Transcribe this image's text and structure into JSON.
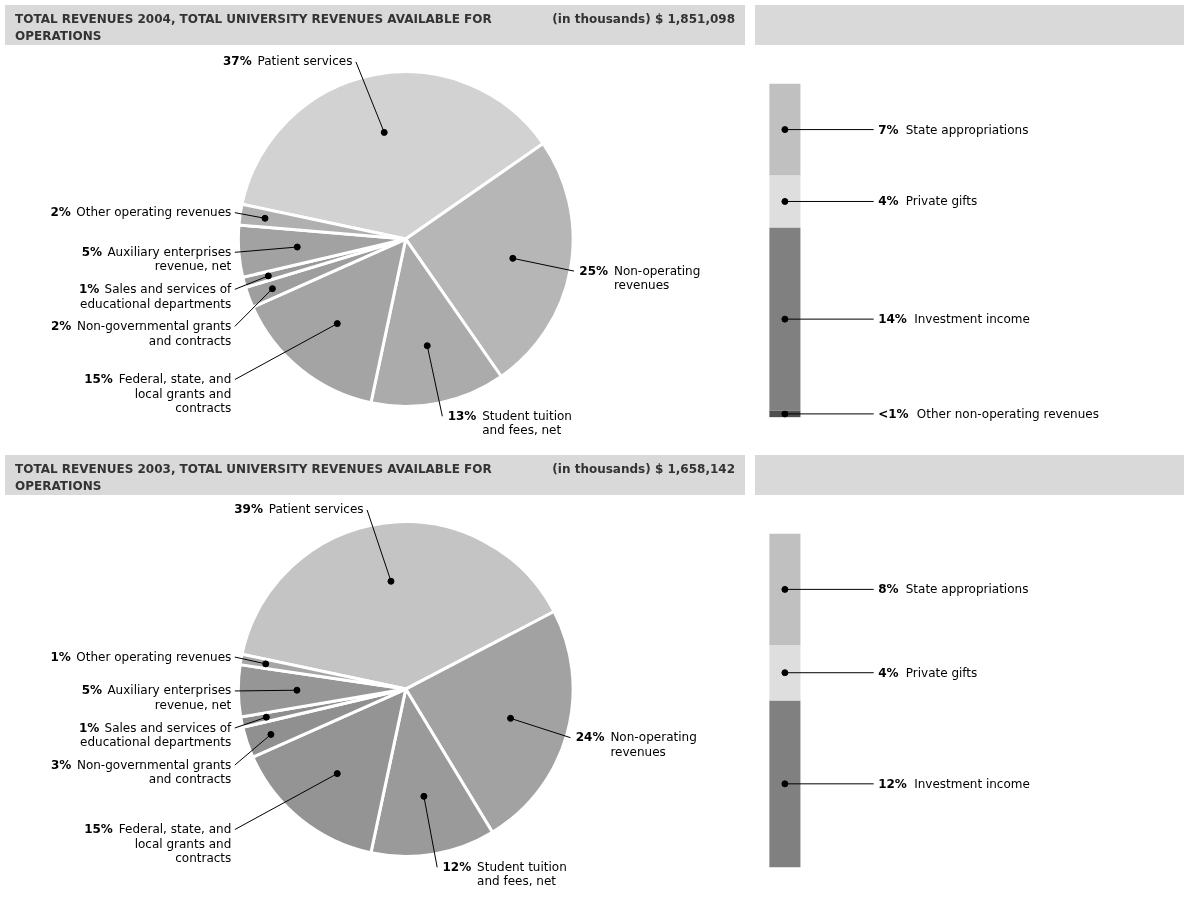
{
  "chart_data": [
    {
      "type": "pie",
      "title": "TOTAL REVENUES 2004, TOTAL UNIVERSITY REVENUES AVAILABLE FOR OPERATIONS",
      "subtitle": "(in thousands) $ 1,851,098",
      "categories": [
        "Patient services",
        "Non-operating revenues",
        "Student tuition and fees, net",
        "Federal, state, and local grants and contracts",
        "Non-governmental grants and contracts",
        "Sales and services of educational departments",
        "Auxiliary enterprises revenue, net",
        "Other operating revenues"
      ],
      "values": [
        37,
        25,
        13,
        15,
        2,
        1,
        5,
        2
      ],
      "value_labels": [
        "37%",
        "25%",
        "13%",
        "15%",
        "2%",
        "1%",
        "5%",
        "2%"
      ],
      "colors": [
        "#d2d2d2",
        "#b6b6b6",
        "#ababab",
        "#a4a4a4",
        "#9e9e9e",
        "#9a9a9a",
        "#a2a2a2",
        "#b0b0b0"
      ]
    },
    {
      "type": "bar",
      "stacked": true,
      "categories": [
        null
      ],
      "series": [
        {
          "name": "Other non-operating revenues",
          "color": "#4f4f4f",
          "values": [
            0.5
          ],
          "value_labels": [
            "<1%"
          ]
        },
        {
          "name": "Investment income",
          "color": "#808080",
          "values": [
            14
          ],
          "value_labels": [
            "14%"
          ]
        },
        {
          "name": "Private gifts",
          "color": "#dedede",
          "values": [
            4
          ],
          "value_labels": [
            "4%"
          ]
        },
        {
          "name": "State appropriations",
          "color": "#c0c0c0",
          "values": [
            7
          ],
          "value_labels": [
            "7%"
          ]
        }
      ]
    },
    {
      "type": "pie",
      "title": "TOTAL REVENUES 2003, TOTAL UNIVERSITY REVENUES AVAILABLE FOR OPERATIONS",
      "subtitle": "(in thousands) $ 1,658,142",
      "categories": [
        "Patient services",
        "Non-operating revenues",
        "Student tuition and fees, net",
        "Federal, state, and local grants and contracts",
        "Non-governmental grants and contracts",
        "Sales and services of educational departments",
        "Auxiliary enterprises revenue, net",
        "Other operating revenues"
      ],
      "values": [
        39,
        24,
        12,
        15,
        3,
        1,
        5,
        1
      ],
      "value_labels": [
        "39%",
        "24%",
        "12%",
        "15%",
        "3%",
        "1%",
        "5%",
        "1%"
      ],
      "colors": [
        "#c4c4c4",
        "#a2a2a2",
        "#9a9a9a",
        "#949494",
        "#909090",
        "#8e8e8e",
        "#969696",
        "#a6a6a6"
      ]
    },
    {
      "type": "bar",
      "stacked": true,
      "categories": [
        null
      ],
      "series": [
        {
          "name": "Investment income",
          "color": "#808080",
          "values": [
            12
          ],
          "value_labels": [
            "12%"
          ]
        },
        {
          "name": "Private gifts",
          "color": "#dedede",
          "values": [
            4
          ],
          "value_labels": [
            "4%"
          ]
        },
        {
          "name": "State appropriations",
          "color": "#c0c0c0",
          "values": [
            8
          ],
          "value_labels": [
            "8%"
          ]
        }
      ]
    }
  ]
}
